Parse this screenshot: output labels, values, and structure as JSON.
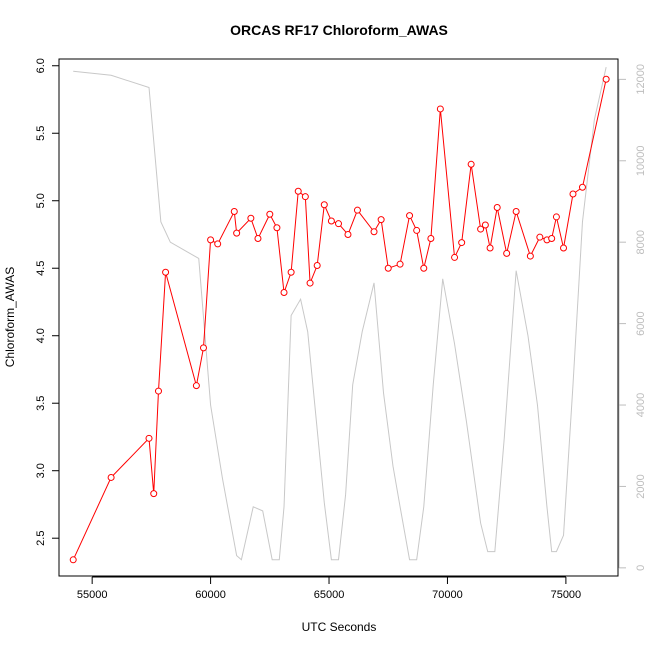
{
  "chart_data": {
    "type": "line",
    "title": "ORCAS RF17 Chloroform_AWAS",
    "xlabel": "UTC Seconds",
    "ylabel": "Chloroform_AWAS",
    "xlim": [
      53600,
      77200
    ],
    "ylim": [
      2.22,
      6.05
    ],
    "y2lim": [
      -200,
      12500
    ],
    "x_ticks": [
      55000,
      60000,
      65000,
      70000,
      75000
    ],
    "y_ticks": [
      2.5,
      3.0,
      3.5,
      4.0,
      4.5,
      5.0,
      5.5,
      6.0
    ],
    "y2_ticks": [
      0,
      2000,
      4000,
      6000,
      8000,
      10000,
      12000
    ],
    "series": [
      {
        "color": "#ff0000",
        "marker": "open-circle",
        "axis": "left",
        "x": [
          54200,
          55800,
          57400,
          57600,
          57800,
          58100,
          59400,
          59700,
          60000,
          60300,
          61000,
          61100,
          61700,
          62000,
          62500,
          62800,
          63100,
          63400,
          63700,
          64000,
          64200,
          64500,
          64800,
          65100,
          65400,
          65800,
          66200,
          66900,
          67200,
          67500,
          68000,
          68400,
          68700,
          69000,
          69300,
          69700,
          70300,
          70600,
          71000,
          71400,
          71600,
          71800,
          72100,
          72500,
          72900,
          73500,
          73900,
          74200,
          74400,
          74600,
          74900,
          75300,
          75700,
          76700
        ],
        "y": [
          2.34,
          2.95,
          3.24,
          2.83,
          3.59,
          4.47,
          3.63,
          3.91,
          4.71,
          4.68,
          4.92,
          4.76,
          4.87,
          4.72,
          4.9,
          4.8,
          4.32,
          4.47,
          5.07,
          5.03,
          4.39,
          4.52,
          4.97,
          4.85,
          4.83,
          4.75,
          4.93,
          4.77,
          4.86,
          4.5,
          4.53,
          4.89,
          4.78,
          4.5,
          4.72,
          5.68,
          4.58,
          4.69,
          5.27,
          4.79,
          4.82,
          4.65,
          4.95,
          4.61,
          4.92,
          4.59,
          4.73,
          4.71,
          4.72,
          4.88,
          4.65,
          5.05,
          5.1,
          5.9
        ]
      },
      {
        "color": "#c8c8c8",
        "marker": "none",
        "axis": "right",
        "x": [
          54200,
          55800,
          57400,
          57900,
          58300,
          59500,
          60000,
          60500,
          61100,
          61300,
          61800,
          62200,
          62600,
          62900,
          63100,
          63400,
          63800,
          64100,
          64400,
          64800,
          65100,
          65400,
          65700,
          66000,
          66400,
          66900,
          67300,
          67700,
          68000,
          68400,
          68700,
          69000,
          69400,
          69800,
          70300,
          70800,
          71400,
          71700,
          72000,
          72400,
          72900,
          73400,
          73800,
          74200,
          74400,
          74600,
          74900,
          75300,
          75700,
          76200,
          76700
        ],
        "y": [
          12200,
          12100,
          11800,
          8500,
          8000,
          7600,
          4000,
          2200,
          300,
          200,
          1500,
          1400,
          200,
          200,
          1500,
          6200,
          6600,
          5800,
          4000,
          1600,
          200,
          200,
          1800,
          4500,
          5800,
          7000,
          4300,
          2500,
          1500,
          200,
          200,
          1500,
          4500,
          7100,
          5500,
          3600,
          1100,
          400,
          400,
          3200,
          7300,
          5700,
          4000,
          1500,
          400,
          400,
          800,
          4500,
          8500,
          11000,
          12300
        ]
      }
    ]
  }
}
